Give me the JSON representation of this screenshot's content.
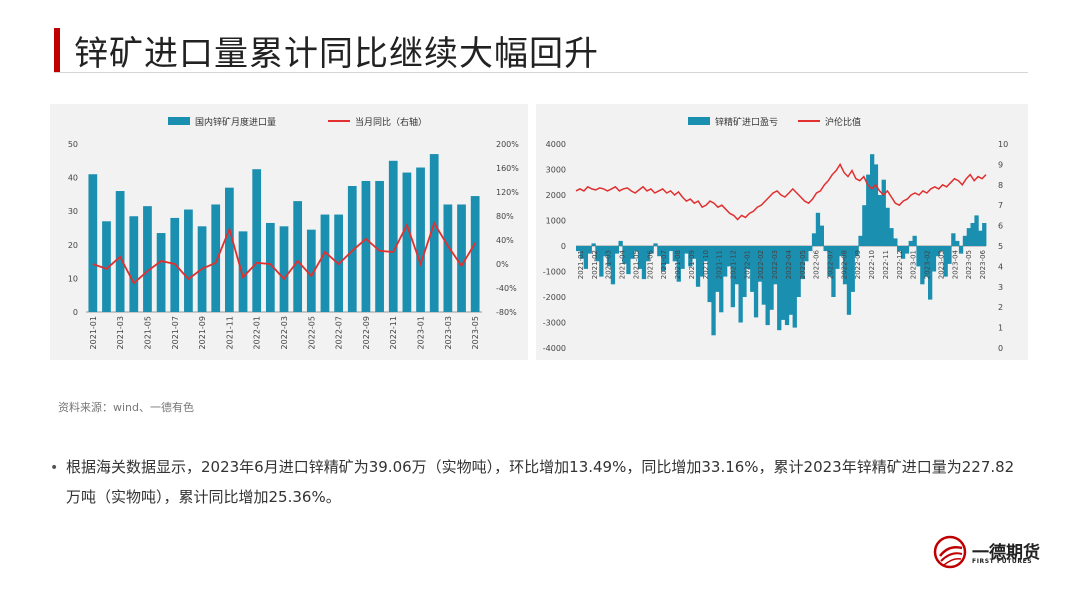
{
  "page": {
    "title": "锌矿进口量累计同比继续大幅回升",
    "source": "资料来源：wind、一德有色",
    "bullet": "根据海关数据显示，2023年6月进口锌精矿为39.06万（实物吨），环比增加13.49%，同比增加33.16%，累计2023年锌精矿进口量为227.82万吨（实物吨），累计同比增加25.36%。",
    "logo_cn": "一德期货",
    "logo_en": "FIRST FUTURES",
    "colors": {
      "accent": "#c00000",
      "bar": "#1b8fb0",
      "line": "#e03030",
      "panel": "#f2f2f2"
    }
  },
  "chart_data": [
    {
      "type": "bar",
      "legend_position": "top",
      "categories": [
        "2021-01",
        "2021-02",
        "2021-03",
        "2021-04",
        "2021-05",
        "2021-06",
        "2021-07",
        "2021-08",
        "2021-09",
        "2021-10",
        "2021-11",
        "2021-12",
        "2022-01",
        "2022-02",
        "2022-03",
        "2022-04",
        "2022-05",
        "2022-06",
        "2022-07",
        "2022-08",
        "2022-09",
        "2022-10",
        "2022-11",
        "2022-12",
        "2023-01",
        "2023-02",
        "2023-03",
        "2023-04",
        "2023-05"
      ],
      "x_tick_labels": [
        "2021-01",
        "2021-03",
        "2021-05",
        "2021-07",
        "2021-09",
        "2021-11",
        "2022-01",
        "2022-03",
        "2022-05",
        "2022-07",
        "2022-09",
        "2022-11",
        "2023-01",
        "2023-03",
        "2023-05"
      ],
      "series": [
        {
          "name": "国内锌矿月度进口量",
          "kind": "bar",
          "axis": "left",
          "values": [
            41,
            27,
            36,
            28.5,
            31.5,
            23.5,
            28,
            30.5,
            25.5,
            32,
            37,
            24,
            42.5,
            26.5,
            25.5,
            33,
            24.5,
            29,
            29,
            37.5,
            39,
            39,
            45,
            41.5,
            43,
            47,
            32,
            32,
            34.5
          ]
        },
        {
          "name": "当月同比（右轴）",
          "kind": "line",
          "axis": "right",
          "values": [
            0,
            -8,
            12,
            -32,
            -12,
            5,
            0,
            -25,
            -8,
            2,
            58,
            -22,
            2,
            0,
            -25,
            5,
            -20,
            20,
            0,
            22,
            42,
            22,
            20,
            65,
            0,
            68,
            30,
            -3,
            35
          ]
        }
      ],
      "y_left": {
        "min": 0,
        "max": 50,
        "ticks": [
          0,
          10,
          20,
          30,
          40,
          50
        ]
      },
      "y_right": {
        "min": -80,
        "max": 200,
        "ticks": [
          "-80%",
          "-40%",
          "0%",
          "40%",
          "80%",
          "120%",
          "160%",
          "200%"
        ]
      }
    },
    {
      "type": "area",
      "legend_position": "top",
      "x_tick_labels": [
        "2021-01",
        "2021-02",
        "2021-03",
        "2021-04",
        "2021-05",
        "2021-06",
        "2021-07",
        "2021-08",
        "2021-09",
        "2021-10",
        "2021-11",
        "2021-12",
        "2022-01",
        "2022-02",
        "2022-03",
        "2022-04",
        "2022-05",
        "2022-06",
        "2022-07",
        "2022-08",
        "2022-09",
        "2022-10",
        "2022-11",
        "2022-12",
        "2023-01",
        "2023-02",
        "2023-03",
        "2023-04",
        "2023-05",
        "2023-06"
      ],
      "series": [
        {
          "name": "锌精矿进口盈亏",
          "kind": "area",
          "axis": "left",
          "weekly_values": [
            -200,
            -500,
            -900,
            -300,
            100,
            -600,
            -1200,
            -400,
            -800,
            -1500,
            -300,
            200,
            -700,
            -1100,
            -500,
            -200,
            -900,
            -1300,
            -600,
            -300,
            100,
            -400,
            -1000,
            -700,
            -200,
            -600,
            -1400,
            -900,
            -300,
            -800,
            -500,
            -1600,
            -1200,
            -600,
            -2200,
            -3500,
            -1800,
            -2600,
            -1200,
            -800,
            -2400,
            -1500,
            -3000,
            -2000,
            -900,
            -1800,
            -2800,
            -1400,
            -2300,
            -3100,
            -2500,
            -1500,
            -3300,
            -2900,
            -3100,
            -2700,
            -3200,
            -2000,
            -1300,
            -600,
            -200,
            500,
            1300,
            800,
            -200,
            -1200,
            -2000,
            -900,
            -400,
            -1500,
            -2700,
            -1800,
            -400,
            400,
            1600,
            2800,
            3600,
            3200,
            2000,
            2600,
            1500,
            700,
            300,
            -200,
            -500,
            -300,
            200,
            400,
            -800,
            -1500,
            -1200,
            -2100,
            -1000,
            -400,
            -200,
            -1200,
            -700,
            500,
            200,
            -300,
            400,
            700,
            900,
            1200,
            600,
            900
          ],
          "range": [
            -3500,
            3600
          ]
        },
        {
          "name": "沪伦比值",
          "kind": "line",
          "axis": "right",
          "weekly_values": [
            7.7,
            7.8,
            7.7,
            7.9,
            7.8,
            7.75,
            7.85,
            7.8,
            7.7,
            7.8,
            7.9,
            7.7,
            7.8,
            7.85,
            7.7,
            7.6,
            7.75,
            7.9,
            7.7,
            7.8,
            7.6,
            7.7,
            7.8,
            7.6,
            7.7,
            7.5,
            7.65,
            7.4,
            7.2,
            7.3,
            7.1,
            7.2,
            6.9,
            7.0,
            7.2,
            7.1,
            6.9,
            7.0,
            6.8,
            6.6,
            6.5,
            6.3,
            6.5,
            6.4,
            6.6,
            6.7,
            6.9,
            7.0,
            7.2,
            7.4,
            7.6,
            7.7,
            7.5,
            7.4,
            7.6,
            7.8,
            7.6,
            7.4,
            7.2,
            7.1,
            7.3,
            7.6,
            7.7,
            8.0,
            8.2,
            8.5,
            8.7,
            9.0,
            8.6,
            8.4,
            8.7,
            8.3,
            8.2,
            8.4,
            8.0,
            7.8,
            8.0,
            7.7,
            7.5,
            7.7,
            7.4,
            7.1,
            7.0,
            7.2,
            7.3,
            7.5,
            7.6,
            7.5,
            7.7,
            7.6,
            7.8,
            7.9,
            7.8,
            8.0,
            7.9,
            8.1,
            8.3,
            8.2,
            8.0,
            8.3,
            8.5,
            8.2,
            8.4,
            8.3,
            8.5
          ]
        }
      ],
      "y_left": {
        "min": -4000,
        "max": 4000,
        "ticks": [
          -4000,
          -3000,
          -2000,
          -1000,
          0,
          1000,
          2000,
          3000,
          4000
        ]
      },
      "y_right": {
        "min": 0,
        "max": 10,
        "ticks": [
          0,
          1,
          2,
          3,
          4,
          5,
          6,
          7,
          8,
          9,
          10
        ]
      }
    }
  ]
}
